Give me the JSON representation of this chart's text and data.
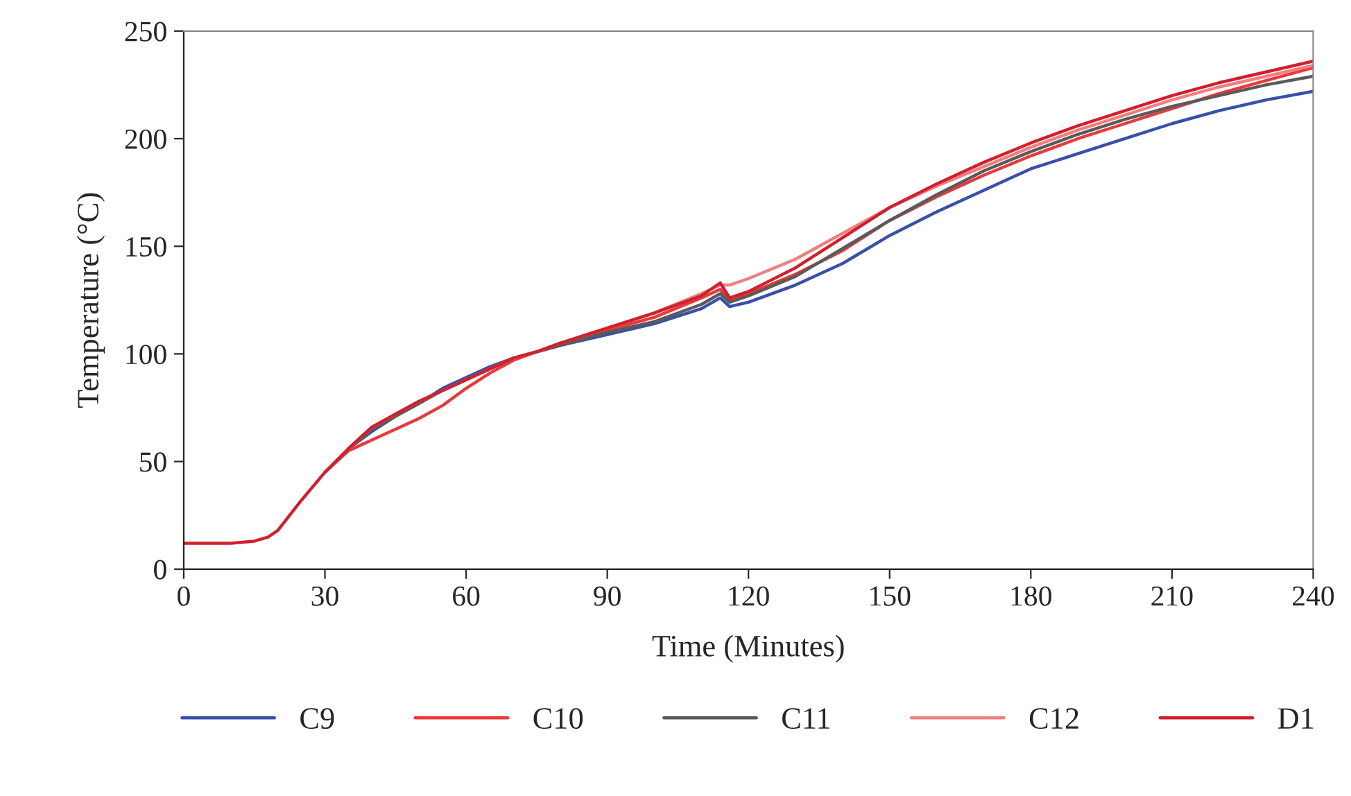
{
  "chart_data": {
    "type": "line",
    "xlabel": "Time (Minutes)",
    "ylabel": "Temperature (°C)",
    "xlim": [
      0,
      240
    ],
    "xticks": [
      0,
      30,
      60,
      90,
      120,
      150,
      180,
      210,
      240
    ],
    "ylim": [
      0,
      250
    ],
    "yticks": [
      0,
      50,
      100,
      150,
      200,
      250
    ],
    "grid": false,
    "legend": "bottom",
    "marker": "none",
    "line_style": "solid",
    "x": [
      0,
      5,
      10,
      15,
      18,
      20,
      25,
      30,
      35,
      40,
      45,
      50,
      55,
      60,
      65,
      70,
      75,
      80,
      90,
      100,
      110,
      114,
      116,
      120,
      130,
      140,
      150,
      160,
      170,
      180,
      190,
      200,
      210,
      220,
      230,
      240
    ],
    "series": [
      {
        "name": "C9",
        "color": "#3a4fa8",
        "values": [
          null,
          null,
          null,
          null,
          null,
          null,
          null,
          null,
          56,
          64,
          71,
          77,
          84,
          89,
          94,
          98,
          101,
          104,
          109,
          114,
          121,
          126,
          122,
          124,
          132,
          142,
          155,
          166,
          176,
          186,
          193,
          200,
          207,
          213,
          218,
          222
        ]
      },
      {
        "name": "C10",
        "color": "#e8393d",
        "values": [
          null,
          null,
          null,
          null,
          null,
          null,
          null,
          45,
          55,
          60,
          65,
          70,
          76,
          84,
          91,
          97,
          101,
          104,
          111,
          117,
          126,
          130,
          125,
          128,
          137,
          148,
          162,
          173,
          183,
          192,
          200,
          207,
          214,
          221,
          227,
          233
        ]
      },
      {
        "name": "C11",
        "color": "#5a5a5a",
        "values": [
          null,
          null,
          null,
          null,
          null,
          null,
          null,
          null,
          56,
          65,
          71,
          77,
          83,
          88,
          93,
          98,
          101,
          104,
          110,
          115,
          123,
          128,
          124,
          127,
          136,
          149,
          162,
          174,
          185,
          194,
          202,
          209,
          215,
          220,
          225,
          229
        ]
      },
      {
        "name": "C12",
        "color": "#f08080",
        "values": [
          null,
          null,
          null,
          null,
          null,
          null,
          null,
          45,
          56,
          66,
          72,
          78,
          83,
          88,
          93,
          98,
          101,
          105,
          112,
          119,
          128,
          132,
          132,
          135,
          144,
          156,
          168,
          178,
          187,
          196,
          204,
          211,
          218,
          224,
          229,
          234
        ]
      },
      {
        "name": "D1",
        "color": "#d0202e",
        "values": [
          12,
          12,
          12,
          13,
          15,
          18,
          32,
          45,
          56,
          66,
          72,
          78,
          83,
          88,
          93,
          98,
          101,
          105,
          112,
          119,
          127,
          133,
          126,
          129,
          140,
          154,
          168,
          179,
          189,
          198,
          206,
          213,
          220,
          226,
          231,
          236
        ]
      }
    ]
  }
}
